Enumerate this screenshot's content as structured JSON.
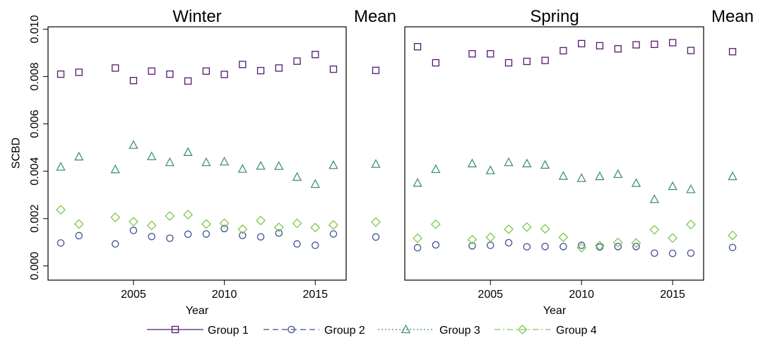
{
  "chart_data": [
    {
      "type": "scatter",
      "title": "Winter",
      "mean_label": "Mean",
      "xlabel": "Year",
      "ylabel": "SCBD",
      "xlim": [
        2000.3,
        2016.7
      ],
      "ylim": [
        -0.0006,
        0.0101
      ],
      "x_ticks": [
        2005,
        2010,
        2015
      ],
      "y_ticks": [
        0.0,
        0.002,
        0.004,
        0.006,
        0.008,
        0.01
      ],
      "y_tick_labels": [
        "0.000",
        "0.002",
        "0.004",
        "0.006",
        "0.008",
        "0.010"
      ],
      "x": [
        2001,
        2002,
        2004,
        2005,
        2006,
        2007,
        2008,
        2009,
        2010,
        2011,
        2012,
        2013,
        2014,
        2015,
        2016
      ],
      "series": [
        {
          "name": "Group 1",
          "values": [
            0.0081,
            0.00818,
            0.00836,
            0.00783,
            0.00823,
            0.0081,
            0.00781,
            0.00823,
            0.00809,
            0.00851,
            0.00825,
            0.00836,
            0.00865,
            0.00893,
            0.00831
          ],
          "mean": 0.00826
        },
        {
          "name": "Group 2",
          "values": [
            0.00097,
            0.00128,
            0.00093,
            0.0015,
            0.00124,
            0.00117,
            0.00134,
            0.00135,
            0.00158,
            0.00129,
            0.00123,
            0.00139,
            0.00093,
            0.00087,
            0.00135
          ],
          "mean": 0.00122
        },
        {
          "name": "Group 3",
          "values": [
            0.00418,
            0.00461,
            0.00407,
            0.0051,
            0.00462,
            0.00437,
            0.0048,
            0.00437,
            0.0044,
            0.00409,
            0.00422,
            0.00421,
            0.00375,
            0.00345,
            0.00425
          ],
          "mean": 0.0043
        },
        {
          "name": "Group 4",
          "values": [
            0.00237,
            0.00177,
            0.00205,
            0.00187,
            0.00171,
            0.00211,
            0.00217,
            0.00177,
            0.0018,
            0.00155,
            0.00192,
            0.00163,
            0.0018,
            0.00162,
            0.00173
          ],
          "mean": 0.00185
        }
      ]
    },
    {
      "type": "scatter",
      "title": "Spring",
      "mean_label": "Mean",
      "xlabel": "Year",
      "ylabel": "",
      "xlim": [
        2000.3,
        2016.7
      ],
      "ylim": [
        -0.0006,
        0.0101
      ],
      "x_ticks": [
        2005,
        2010,
        2015
      ],
      "y_ticks": [],
      "y_tick_labels": [],
      "x": [
        2001,
        2002,
        2004,
        2005,
        2006,
        2007,
        2008,
        2009,
        2010,
        2011,
        2012,
        2013,
        2014,
        2015,
        2016
      ],
      "series": [
        {
          "name": "Group 1",
          "values": [
            0.00926,
            0.00858,
            0.00896,
            0.00896,
            0.00858,
            0.00864,
            0.00868,
            0.00909,
            0.00939,
            0.0093,
            0.00917,
            0.00934,
            0.00936,
            0.00943,
            0.0091
          ],
          "mean": 0.00905
        },
        {
          "name": "Group 2",
          "values": [
            0.00077,
            0.00089,
            0.00085,
            0.00087,
            0.00098,
            0.00081,
            0.00082,
            0.00082,
            0.00087,
            0.0008,
            0.00082,
            0.00082,
            0.00054,
            0.00053,
            0.00054
          ],
          "mean": 0.00078
        },
        {
          "name": "Group 3",
          "values": [
            0.0035,
            0.00408,
            0.00432,
            0.00403,
            0.00437,
            0.00432,
            0.00426,
            0.00379,
            0.0037,
            0.00378,
            0.00387,
            0.00349,
            0.00281,
            0.00336,
            0.00323
          ],
          "mean": 0.00378
        },
        {
          "name": "Group 4",
          "values": [
            0.00117,
            0.00176,
            0.00111,
            0.00121,
            0.00155,
            0.00164,
            0.00157,
            0.00121,
            0.00077,
            0.00086,
            0.00099,
            0.00097,
            0.00153,
            0.00118,
            0.00175
          ],
          "mean": 0.00129
        }
      ]
    }
  ],
  "legend": {
    "placement": "bottom",
    "items": [
      {
        "name": "Group 1",
        "color": "#531a6b",
        "marker": "square",
        "line": "solid"
      },
      {
        "name": "Group 2",
        "color": "#3f4e97",
        "marker": "circle",
        "line": "dashed"
      },
      {
        "name": "Group 3",
        "color": "#428e84",
        "marker": "triangle",
        "line": "dotted"
      },
      {
        "name": "Group 4",
        "color": "#7fc64f",
        "marker": "diamond",
        "line": "dashdot"
      }
    ]
  }
}
